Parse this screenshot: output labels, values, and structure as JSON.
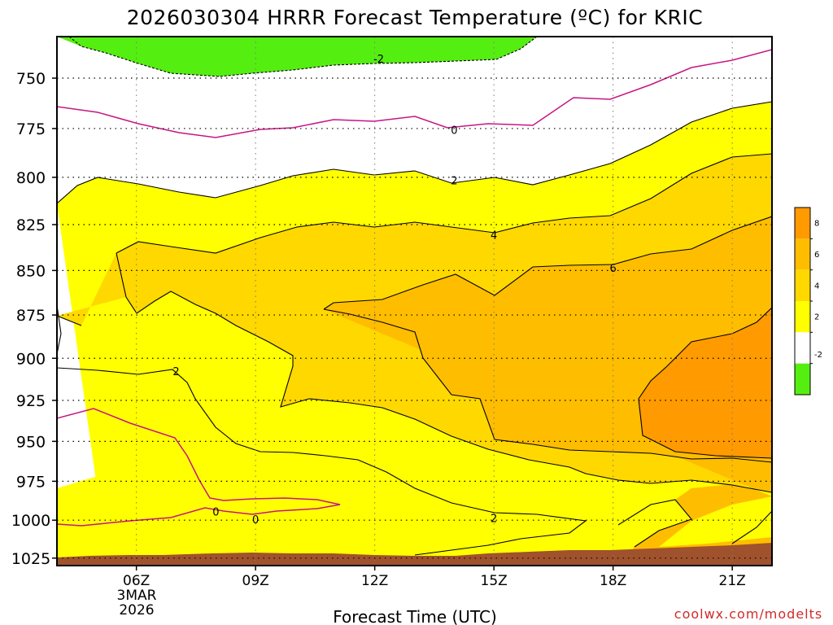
{
  "chart_data": {
    "type": "contour",
    "title": "2026030304 HRRR Forecast Temperature (ºC) for KRIC",
    "xlabel": "Forecast Time (UTC)",
    "x_ticks": [
      "06Z",
      "09Z",
      "12Z",
      "15Z",
      "18Z",
      "21Z"
    ],
    "x_date_lines": [
      "3MAR",
      "2026"
    ],
    "x_range_hours_utc": [
      4,
      22
    ],
    "y_ticks": [
      750,
      775,
      800,
      825,
      850,
      875,
      900,
      925,
      950,
      975,
      1000,
      1025
    ],
    "y_range_hpa": [
      730,
      1030
    ],
    "grid": true,
    "colorbar": {
      "ticks": [
        "8",
        "6",
        "4",
        "2",
        "-2"
      ],
      "colors": [
        "#ff9a00",
        "#ffbd00",
        "#ffd800",
        "#ffff00",
        "#ffffff",
        "#55ee11"
      ]
    },
    "fill_colors": {
      "lt_minus2": "#55ee11",
      "c2_4": "#ffff00",
      "c4_6": "#ffd800",
      "c6_8": "#ffbd00",
      "gt_8": "#ff9a00",
      "terrain": "#a0522d",
      "isotherm_0": "#c71585",
      "contour": "#000000"
    },
    "contour_labels": [
      {
        "text": "-2",
        "hour": 12.1,
        "p": 741
      },
      {
        "text": "0",
        "hour": 14.0,
        "p": 776
      },
      {
        "text": "2",
        "hour": 14.0,
        "p": 802
      },
      {
        "text": "4",
        "hour": 15.0,
        "p": 831
      },
      {
        "text": "6",
        "hour": 18.0,
        "p": 849
      },
      {
        "text": "2",
        "hour": 7.0,
        "p": 908
      },
      {
        "text": "0",
        "hour": 8.0,
        "p": 995
      },
      {
        "text": "0",
        "hour": 9.0,
        "p": 1000
      },
      {
        "text": "2",
        "hour": 15.0,
        "p": 999
      }
    ],
    "credit": "coolwx.com/modelts"
  }
}
